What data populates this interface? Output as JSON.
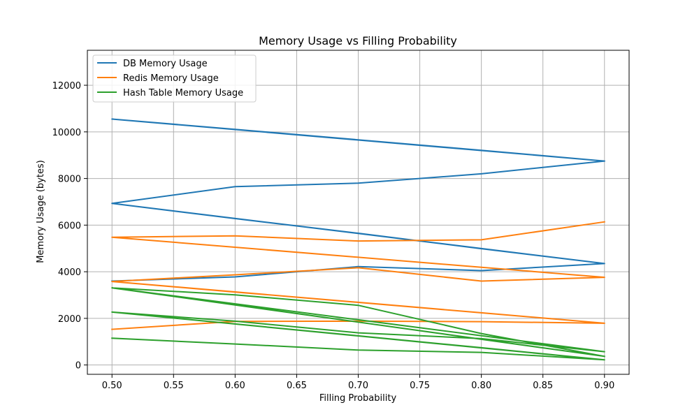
{
  "chart_data": {
    "type": "line",
    "title": "Memory Usage vs Filling Probability",
    "xlabel": "Filling Probability",
    "ylabel": "Memory Usage (bytes)",
    "xlim": [
      0.48,
      0.92
    ],
    "ylim": [
      -400,
      13500
    ],
    "grid": true,
    "legend_position": "top-left",
    "x_ticks": [
      "0.50",
      "0.55",
      "0.60",
      "0.65",
      "0.70",
      "0.75",
      "0.80",
      "0.85",
      "0.90"
    ],
    "y_ticks": [
      "0",
      "2000",
      "4000",
      "6000",
      "8000",
      "10000",
      "12000"
    ],
    "series": [
      {
        "name": "DB Memory Usage",
        "color": "#1f77b4",
        "x": [
          0.5,
          0.6,
          0.7,
          0.8,
          0.9,
          0.5,
          0.6,
          0.7,
          0.8,
          0.9,
          0.5,
          0.6,
          0.7,
          0.8,
          0.9,
          0.5,
          0.6,
          0.7,
          0.8,
          0.9
        ],
        "y": [
          3600,
          3780,
          4220,
          4050,
          4350,
          6930,
          6280,
          5650,
          4990,
          4350,
          6930,
          7650,
          7800,
          8200,
          8750,
          10550,
          10110,
          9660,
          9210,
          8750
        ]
      },
      {
        "name": "Redis Memory Usage",
        "color": "#ff7f0e",
        "x": [
          0.5,
          0.6,
          0.7,
          0.8,
          0.9,
          0.5,
          0.6,
          0.7,
          0.8,
          0.9,
          0.5,
          0.6,
          0.7,
          0.8,
          0.9,
          0.5,
          0.6,
          0.7,
          0.8,
          0.9
        ],
        "y": [
          1530,
          1870,
          1880,
          1860,
          1790,
          3580,
          3130,
          2690,
          2240,
          1790,
          3580,
          3870,
          4170,
          3600,
          3760,
          5480,
          5540,
          5320,
          5370,
          6140
        ]
      },
      {
        "name": "Hash Table Memory Usage",
        "color": "#2ca02c",
        "x": [
          0.5,
          0.6,
          0.7,
          0.8,
          0.9,
          0.5,
          0.6,
          0.7,
          0.8,
          0.9,
          0.5,
          0.6,
          0.7,
          0.8,
          0.9,
          0.5,
          0.6,
          0.7,
          0.8,
          0.9,
          0.5,
          0.6,
          0.7,
          0.8,
          0.9
        ],
        "y": [
          1150,
          900,
          640,
          540,
          220,
          2270,
          1760,
          1250,
          740,
          220,
          2270,
          1880,
          1380,
          1130,
          570,
          3310,
          2580,
          1840,
          1100,
          370,
          3310,
          3010,
          2560,
          1350,
          370
        ]
      }
    ]
  }
}
